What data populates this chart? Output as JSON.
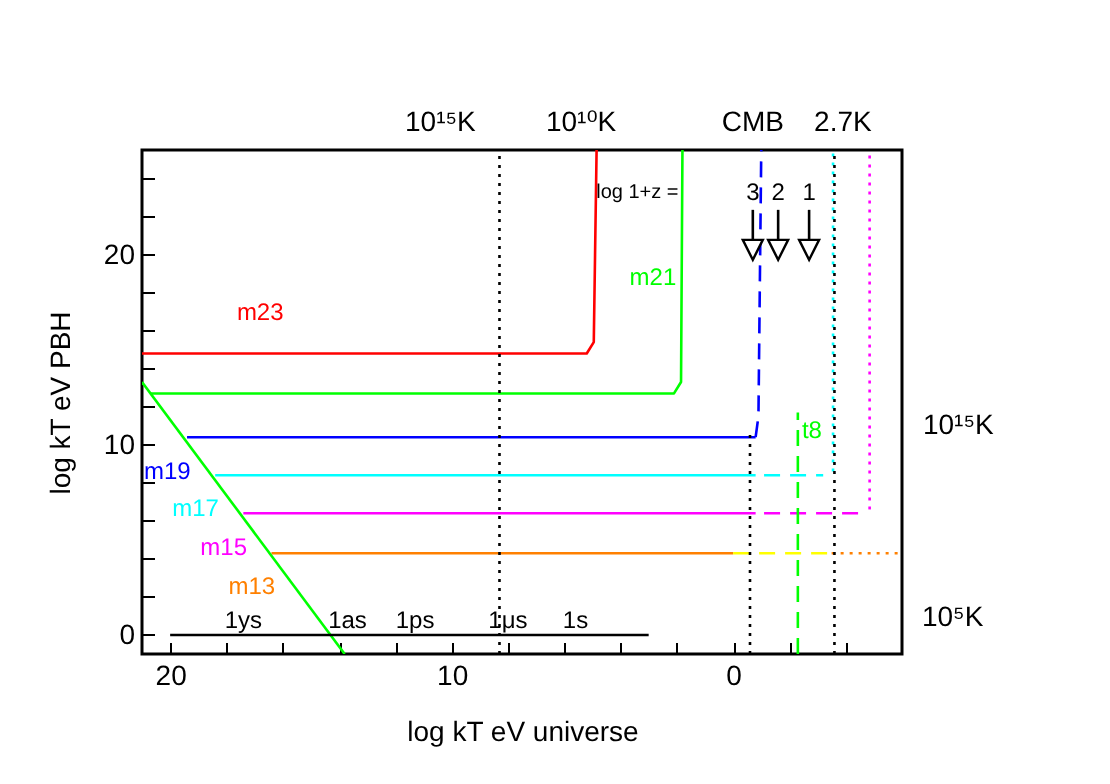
{
  "chart_data": {
    "type": "line",
    "xlabel": "log kT eV universe",
    "ylabel": "log kT eV PBH",
    "xlim": [
      21,
      -6
    ],
    "xticks": [
      20,
      {
        "value": 18,
        "label": null
      },
      {
        "value": 16,
        "label": null
      },
      {
        "value": 14,
        "label": null
      },
      {
        "value": 12,
        "label": null
      },
      10,
      {
        "value": 8,
        "label": null
      },
      {
        "value": 6,
        "label": null
      },
      {
        "value": 4,
        "label": null
      },
      {
        "value": 2,
        "label": null
      },
      0,
      {
        "value": -2,
        "label": null
      },
      {
        "value": -4,
        "label": null
      }
    ],
    "ylim": [
      -1,
      25.5
    ],
    "yticks": [
      0,
      {
        "value": 2,
        "label": null
      },
      {
        "value": 4,
        "label": null
      },
      {
        "value": 6,
        "label": null
      },
      {
        "value": 8,
        "label": null
      },
      10,
      {
        "value": 12,
        "label": null
      },
      {
        "value": 14,
        "label": null
      },
      {
        "value": 16,
        "label": null
      },
      {
        "value": 18,
        "label": null
      },
      20,
      {
        "value": 22,
        "label": null
      },
      {
        "value": 24,
        "label": null
      }
    ],
    "tick_labels": "xy",
    "grid": false,
    "legend": false,
    "line_style": "solid",
    "series": [
      {
        "name": "m23",
        "color": "#ff0000",
        "x": [
          21,
          5.2,
          4.95,
          4.85
        ],
        "values": [
          14.8,
          14.8,
          15.4,
          25.5
        ]
      },
      {
        "name": "m21",
        "color": "#00ff00",
        "x": [
          20.7,
          2.1,
          1.85,
          1.8
        ],
        "values": [
          12.7,
          12.7,
          13.3,
          25.5
        ]
      },
      {
        "name": "m19",
        "color": "#0000ff",
        "x": [
          19.4,
          -0.8
        ],
        "values": [
          10.4,
          10.4
        ]
      },
      {
        "color": "#0000ff",
        "line_style": "dashed",
        "x": [
          -0.8,
          -0.9,
          -1.0
        ],
        "values": [
          10.4,
          11.5,
          25.5
        ]
      },
      {
        "name": "m17",
        "color": "#00ffff",
        "x": [
          18.4,
          -0.8
        ],
        "values": [
          8.4,
          8.4
        ]
      },
      {
        "color": "#00ffff",
        "line_style": "dashed",
        "x": [
          -1.1,
          -3.2
        ],
        "values": [
          8.4,
          8.4
        ]
      },
      {
        "color": "#00ffff",
        "line_style": "dotted",
        "x": [
          -3.55,
          -3.55
        ],
        "values": [
          8.6,
          25.5
        ]
      },
      {
        "name": "m15",
        "color": "#ff00ff",
        "x": [
          17.4,
          -0.8
        ],
        "values": [
          6.4,
          6.4
        ]
      },
      {
        "color": "#ff00ff",
        "line_style": "dashed",
        "x": [
          -1.1,
          -4.7
        ],
        "values": [
          6.4,
          6.4
        ]
      },
      {
        "color": "#ff00ff",
        "line_style": "dotted",
        "x": [
          -4.85,
          -4.85
        ],
        "values": [
          6.6,
          25.5
        ]
      },
      {
        "name": "m13",
        "color": "#ff8000",
        "x": [
          16.4,
          0
        ],
        "values": [
          4.3,
          4.3
        ]
      },
      {
        "color": "#ffff00",
        "line_style": "dashed",
        "x": [
          0,
          -3.5
        ],
        "values": [
          4.3,
          4.3
        ]
      },
      {
        "color": "#ff8000",
        "line_style": "dotted",
        "x": [
          -3.5,
          -6
        ],
        "values": [
          4.3,
          4.3
        ]
      },
      {
        "color": "#00ff00",
        "x": [
          21,
          13.8
        ],
        "values": [
          13.3,
          -1
        ]
      },
      {
        "name": "t8",
        "color": "#00ff00",
        "line_style": "dashed",
        "x": [
          -2.3,
          -2.3
        ],
        "values": [
          -1,
          11.7
        ]
      },
      {
        "color": "#000000",
        "x": [
          20,
          3
        ],
        "values": [
          0,
          0
        ]
      },
      {
        "color": "#000000",
        "line_style": "dotted",
        "x": [
          8.3,
          8.3
        ],
        "values": [
          -1,
          25.5
        ]
      },
      {
        "color": "#000000",
        "line_style": "dotted",
        "x": [
          -0.6,
          -0.6
        ],
        "values": [
          -1,
          10.6
        ]
      },
      {
        "color": "#000000",
        "line_style": "dotted",
        "x": [
          -3.6,
          -3.6
        ],
        "values": [
          -1,
          25.5
        ]
      }
    ],
    "annotations": [
      "1ys",
      "1as",
      "1ps",
      "1μs",
      "1s",
      "10¹⁵K",
      "10¹⁰K",
      "CMB",
      "2.7K",
      "10¹⁵K",
      "10⁵K",
      "log 1+z =",
      "3",
      "2",
      "1"
    ]
  }
}
